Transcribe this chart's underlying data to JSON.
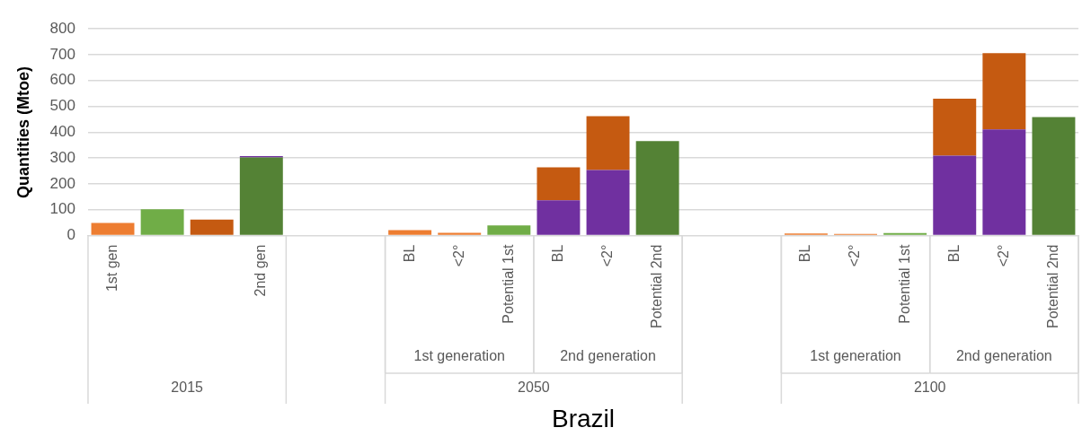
{
  "chart_data": {
    "type": "bar",
    "ylabel": "Quantities (Mtoe)",
    "xlabel": "Brazil",
    "stacked": true,
    "grid": "y",
    "ylim": [
      0,
      800
    ],
    "yticks": [
      0,
      100,
      200,
      300,
      400,
      500,
      600,
      700,
      800
    ],
    "categories": [
      "1st gen",
      null,
      null,
      "2nd gen",
      null,
      null,
      "BL",
      "<2°",
      "Potential 1st",
      "BL",
      "<2°",
      "Potential 2nd",
      null,
      null,
      "BL",
      "<2°",
      "Potential 1st",
      "BL",
      "<2°",
      "Potential 2nd"
    ],
    "series": [
      {
        "color": "#548235",
        "values": [
          null,
          null,
          null,
          302,
          null,
          null,
          null,
          null,
          null,
          null,
          null,
          366,
          null,
          null,
          null,
          null,
          null,
          null,
          null,
          459
        ]
      },
      {
        "color": "#7030a0",
        "values": [
          null,
          null,
          null,
          6,
          null,
          null,
          null,
          null,
          null,
          137,
          254,
          null,
          null,
          null,
          null,
          null,
          null,
          309,
          411,
          null
        ]
      },
      {
        "color": "#c55a11",
        "values": [
          null,
          null,
          62,
          null,
          null,
          null,
          null,
          null,
          null,
          127,
          208,
          null,
          null,
          null,
          null,
          null,
          null,
          221,
          295,
          null
        ]
      },
      {
        "color": "#ed7d31",
        "values": [
          49,
          null,
          null,
          null,
          null,
          null,
          21,
          11,
          null,
          null,
          null,
          null,
          null,
          null,
          8,
          6,
          null,
          null,
          null,
          null
        ]
      },
      {
        "color": "#70ad47",
        "values": [
          null,
          102,
          null,
          null,
          null,
          null,
          null,
          null,
          39,
          null,
          null,
          null,
          null,
          null,
          null,
          null,
          10,
          null,
          null,
          null
        ]
      }
    ],
    "annotations": [
      "1st generation",
      "2nd generation",
      "1st generation",
      "2nd generation",
      "2015",
      "2050",
      "2100"
    ]
  }
}
